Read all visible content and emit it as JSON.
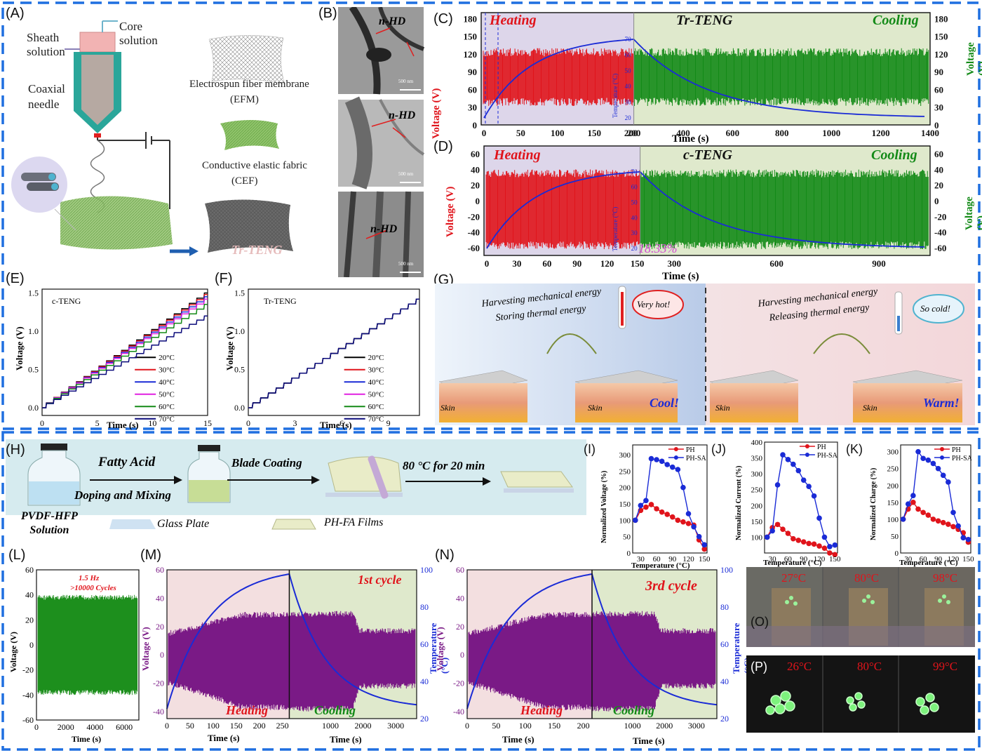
{
  "colors": {
    "frame": "#1f6fe0",
    "heat": "#e0141b",
    "cool": "#138a17",
    "blue": "#1a2bd6",
    "purple": "#7a1a86",
    "pink": "#f2d6db",
    "lightgreen": "#dfe9cc",
    "lavender": "#ddd6ea",
    "lightcyan": "#d6ebef",
    "pinkbg": "#f3dfe0"
  },
  "panels": {
    "A": "(A)",
    "B": "(B)",
    "C": "(C)",
    "D": "(D)",
    "E": "(E)",
    "F": "(F)",
    "G": "(G)",
    "H": "(H)",
    "I": "(I)",
    "J": "(J)",
    "K": "(K)",
    "L": "(L)",
    "M": "(M)",
    "N": "(N)",
    "O": "(O)",
    "P": "(P)"
  },
  "panelA": {
    "sheath": "Sheath\nsolution",
    "core": "Core\nsolution",
    "needle": "Coaxial\nneedle",
    "efm": "Electrospun fiber membrane",
    "efm_abbr": "(EFM)",
    "cef": "Conductive elastic fabric",
    "cef_abbr": "(CEF)",
    "trteng": "Tr-TENG"
  },
  "panelB": {
    "label1": "n-HD",
    "label2": "n-HD",
    "label3": "n-HD",
    "scale": "500 nm"
  },
  "panelC": {
    "heating": "Heating",
    "title": "Tr-TENG",
    "cooling": "Cooling",
    "ylabel": "Voltage (V)",
    "ylabel_r": "Voltage (V)",
    "xlabel": "Time (s)",
    "inner_ylabel": "Temperature (°C)"
  },
  "panelD": {
    "heating": "Heating",
    "title": "c-TENG",
    "cooling": "Cooling",
    "ylabel": "Voltage (V)",
    "ylabel_r": "Voltage (V)",
    "xlabel": "Time (s)",
    "inner_ylabel": "Temperature (°C)",
    "annotation": "18.33%"
  },
  "panelE": {
    "title": "c-TENG",
    "ylabel": "Voltage (V)",
    "xlabel": "Time (s)"
  },
  "panelF": {
    "title": "Tr-TENG",
    "ylabel": "Voltage (V)",
    "xlabel": "Time (s)"
  },
  "panelG": {
    "left_text1": "Harvesting mechanical energy",
    "left_text2": "Storing thermal energy",
    "left_bubble": "Very hot!",
    "left_skin1": "Skin",
    "left_skin2": "Skin",
    "left_word": "Cool!",
    "right_text1": "Harvesting mechanical energy",
    "right_text2": "Releasing thermal energy",
    "right_bubble": "So cold!",
    "right_skin1": "Skin",
    "right_skin2": "Skin",
    "right_word": "Warm!"
  },
  "panelH": {
    "step1": "Fatty Acid",
    "step1b": "Doping and Mixing",
    "step2": "Blade Coating",
    "step3": "80 °C for 20 min",
    "solution": "PVDF-HFP\nSolution",
    "glass": "Glass Plate",
    "films": "PH-FA Films"
  },
  "panelI": {
    "ylabel": "Normalized Voltage (%)",
    "xlabel": "Temperature (°C)"
  },
  "panelJ": {
    "ylabel": "Normalized Current (%)",
    "xlabel": "Temperature (°C)"
  },
  "panelK": {
    "ylabel": "Normalized Charge (%)",
    "xlabel": "Temperature (°C)"
  },
  "panelL": {
    "note1": "1.5 Hz",
    "note2": ">10000 Cycles",
    "ylabel": "Voltage (V)",
    "xlabel": "Time (s)"
  },
  "panelM": {
    "cycle": "1st cycle",
    "heating": "Heating",
    "cooling": "Cooling",
    "ylabel": "Voltage (V)",
    "ylabel_r": "Temperature (°C)",
    "xlabel1": "Time (s)",
    "xlabel2": "Time (s)"
  },
  "panelN": {
    "cycle": "3rd cycle",
    "heating": "Heating",
    "cooling": "Cooling",
    "ylabel": "Voltage (V)",
    "ylabel_r": "Temperature (°C)",
    "xlabel1": "Time (s)",
    "xlabel2": "Time (s)"
  },
  "panelO": {
    "t1": "27°C",
    "t2": "80°C",
    "t3": "98°C"
  },
  "panelP": {
    "t1": "26°C",
    "t2": "80°C",
    "t3": "99°C"
  },
  "chart_data": [
    {
      "id": "C",
      "type": "line",
      "title": "Tr-TENG",
      "xlabel": "Time (s)",
      "ylabel": "Voltage (V)",
      "x_ticks_heating": [
        0,
        50,
        100,
        150,
        200
      ],
      "x_ticks_cooling": [
        200,
        400,
        600,
        800,
        1000,
        1200,
        1400
      ],
      "ylim": [
        0,
        190
      ],
      "y_ticks": [
        0,
        30,
        60,
        90,
        120,
        150,
        180
      ],
      "inner_y_ticks": [
        20,
        30,
        40,
        50,
        60,
        70
      ],
      "series": [
        {
          "name": "Heating",
          "values_range": [
            30,
            130
          ]
        },
        {
          "name": "Cooling",
          "values_range": [
            20,
            130
          ]
        }
      ]
    },
    {
      "id": "D",
      "type": "line",
      "title": "c-TENG",
      "xlabel": "Time (s)",
      "ylabel": "Voltage (V)",
      "x_ticks_heating": [
        0,
        30,
        60,
        90,
        120,
        150
      ],
      "x_ticks_cooling": [
        300,
        600,
        900
      ],
      "ylim": [
        -70,
        70
      ],
      "y_ticks": [
        -60,
        -40,
        -20,
        0,
        20,
        40,
        60
      ],
      "inner_y_ticks": [
        20,
        30,
        40,
        50,
        60,
        70
      ]
    },
    {
      "id": "E",
      "type": "line",
      "title": "c-TENG",
      "xlabel": "Time (s)",
      "ylabel": "Voltage (V)",
      "xlim": [
        0,
        15
      ],
      "ylim": [
        -0.1,
        1.55
      ],
      "x_ticks": [
        0,
        5,
        10,
        15
      ],
      "y_ticks": [
        0.0,
        0.5,
        1.0,
        1.5
      ],
      "series": [
        {
          "name": "20°C",
          "color": "#000000",
          "end": 1.5
        },
        {
          "name": "30°C",
          "color": "#e0141b",
          "end": 1.48
        },
        {
          "name": "40°C",
          "color": "#1a2bd6",
          "end": 1.45
        },
        {
          "name": "50°C",
          "color": "#e020e0",
          "end": 1.42
        },
        {
          "name": "60°C",
          "color": "#138a17",
          "end": 1.35
        },
        {
          "name": "70°C",
          "color": "#0a0a7a",
          "end": 1.2
        }
      ]
    },
    {
      "id": "F",
      "type": "line",
      "title": "Tr-TENG",
      "xlabel": "Time (s)",
      "ylabel": "Voltage (V)",
      "xlim": [
        0,
        11
      ],
      "ylim": [
        -0.1,
        1.55
      ],
      "x_ticks": [
        0,
        3,
        6,
        9
      ],
      "y_ticks": [
        0.0,
        0.5,
        1.0,
        1.5
      ],
      "series": [
        {
          "name": "20°C",
          "color": "#000000",
          "end": 1.42
        },
        {
          "name": "30°C",
          "color": "#e0141b",
          "end": 1.42
        },
        {
          "name": "40°C",
          "color": "#1a2bd6",
          "end": 1.42
        },
        {
          "name": "50°C",
          "color": "#e020e0",
          "end": 1.42
        },
        {
          "name": "60°C",
          "color": "#138a17",
          "end": 1.42
        },
        {
          "name": "70°C",
          "color": "#0a0a7a",
          "end": 1.42
        }
      ]
    },
    {
      "id": "I",
      "type": "line",
      "xlabel": "Temperature (°C)",
      "ylabel": "Normalized Voltage (%)",
      "xlim": [
        15,
        155
      ],
      "ylim": [
        0,
        330
      ],
      "x_ticks": [
        30,
        60,
        90,
        120,
        150
      ],
      "y_ticks": [
        0,
        50,
        100,
        150,
        200,
        250,
        300
      ],
      "series": [
        {
          "name": "PH",
          "color": "#e0141b",
          "x": [
            20,
            30,
            40,
            50,
            60,
            70,
            80,
            90,
            100,
            110,
            120,
            130,
            140,
            150
          ],
          "values": [
            100,
            130,
            140,
            148,
            135,
            125,
            118,
            110,
            100,
            95,
            90,
            85,
            40,
            12
          ]
        },
        {
          "name": "PH-SA",
          "color": "#1a2bd6",
          "x": [
            20,
            30,
            40,
            50,
            60,
            70,
            80,
            90,
            100,
            110,
            120,
            130,
            140,
            150
          ],
          "values": [
            100,
            145,
            160,
            288,
            285,
            280,
            270,
            262,
            255,
            200,
            120,
            80,
            50,
            25
          ]
        }
      ]
    },
    {
      "id": "J",
      "type": "line",
      "xlabel": "Temperature (°C)",
      "ylabel": "Normalized Current (%)",
      "xlim": [
        15,
        155
      ],
      "ylim": [
        50,
        400
      ],
      "x_ticks": [
        30,
        60,
        90,
        120,
        150
      ],
      "y_ticks": [
        100,
        150,
        200,
        250,
        300,
        350,
        400
      ],
      "series": [
        {
          "name": "PH",
          "color": "#e0141b",
          "x": [
            20,
            30,
            40,
            50,
            60,
            70,
            80,
            90,
            100,
            110,
            120,
            130,
            140,
            150
          ],
          "values": [
            100,
            130,
            140,
            125,
            112,
            95,
            90,
            85,
            80,
            78,
            72,
            65,
            50,
            45
          ]
        },
        {
          "name": "PH-SA",
          "color": "#1a2bd6",
          "x": [
            20,
            30,
            40,
            50,
            60,
            70,
            80,
            90,
            100,
            110,
            120,
            130,
            140,
            150
          ],
          "values": [
            100,
            120,
            265,
            360,
            345,
            330,
            310,
            280,
            260,
            230,
            160,
            100,
            70,
            75
          ]
        }
      ]
    },
    {
      "id": "K",
      "type": "line",
      "xlabel": "Temperature (°C)",
      "ylabel": "Normalized Charge (%)",
      "xlim": [
        15,
        155
      ],
      "ylim": [
        0,
        320
      ],
      "x_ticks": [
        30,
        60,
        90,
        120,
        150
      ],
      "y_ticks": [
        0,
        50,
        100,
        150,
        200,
        250,
        300
      ],
      "series": [
        {
          "name": "PH",
          "color": "#e0141b",
          "x": [
            20,
            30,
            40,
            50,
            60,
            70,
            80,
            90,
            100,
            110,
            120,
            130,
            140,
            150
          ],
          "values": [
            100,
            130,
            150,
            130,
            120,
            112,
            100,
            95,
            90,
            85,
            78,
            70,
            60,
            32
          ]
        },
        {
          "name": "PH-SA",
          "color": "#1a2bd6",
          "x": [
            20,
            30,
            40,
            50,
            60,
            70,
            80,
            90,
            100,
            110,
            120,
            130,
            140,
            150
          ],
          "values": [
            100,
            145,
            170,
            300,
            280,
            275,
            265,
            250,
            230,
            210,
            120,
            80,
            45,
            40
          ]
        }
      ]
    },
    {
      "id": "L",
      "type": "area",
      "xlabel": "Time (s)",
      "ylabel": "Voltage (V)",
      "xlim": [
        0,
        7000
      ],
      "ylim": [
        -60,
        60
      ],
      "x_ticks": [
        0,
        2000,
        4000,
        6000
      ],
      "y_ticks": [
        -60,
        -40,
        -20,
        0,
        20,
        40,
        60
      ],
      "amplitude": 40
    },
    {
      "id": "M",
      "type": "line",
      "xlabel": "Time (s)",
      "ylabel": "Voltage (V)",
      "ylim": [
        -45,
        60
      ],
      "x_ticks_heating": [
        0,
        50,
        100,
        150,
        200,
        250
      ],
      "x_ticks_cooling": [
        1000,
        2000,
        3000
      ],
      "y_ticks": [
        -40,
        -20,
        0,
        20,
        40,
        60
      ],
      "right_ticks": [
        20,
        40,
        60,
        80,
        100
      ]
    },
    {
      "id": "N",
      "type": "line",
      "xlabel": "Time (s)",
      "ylabel": "Voltage (V)",
      "ylim": [
        -45,
        60
      ],
      "x_ticks_heating": [
        0,
        50,
        100,
        150,
        200
      ],
      "x_ticks_cooling": [
        1000,
        2000,
        3000
      ],
      "y_ticks": [
        -40,
        -20,
        0,
        20,
        40,
        60
      ],
      "right_ticks": [
        20,
        40,
        60,
        80,
        100
      ]
    }
  ]
}
